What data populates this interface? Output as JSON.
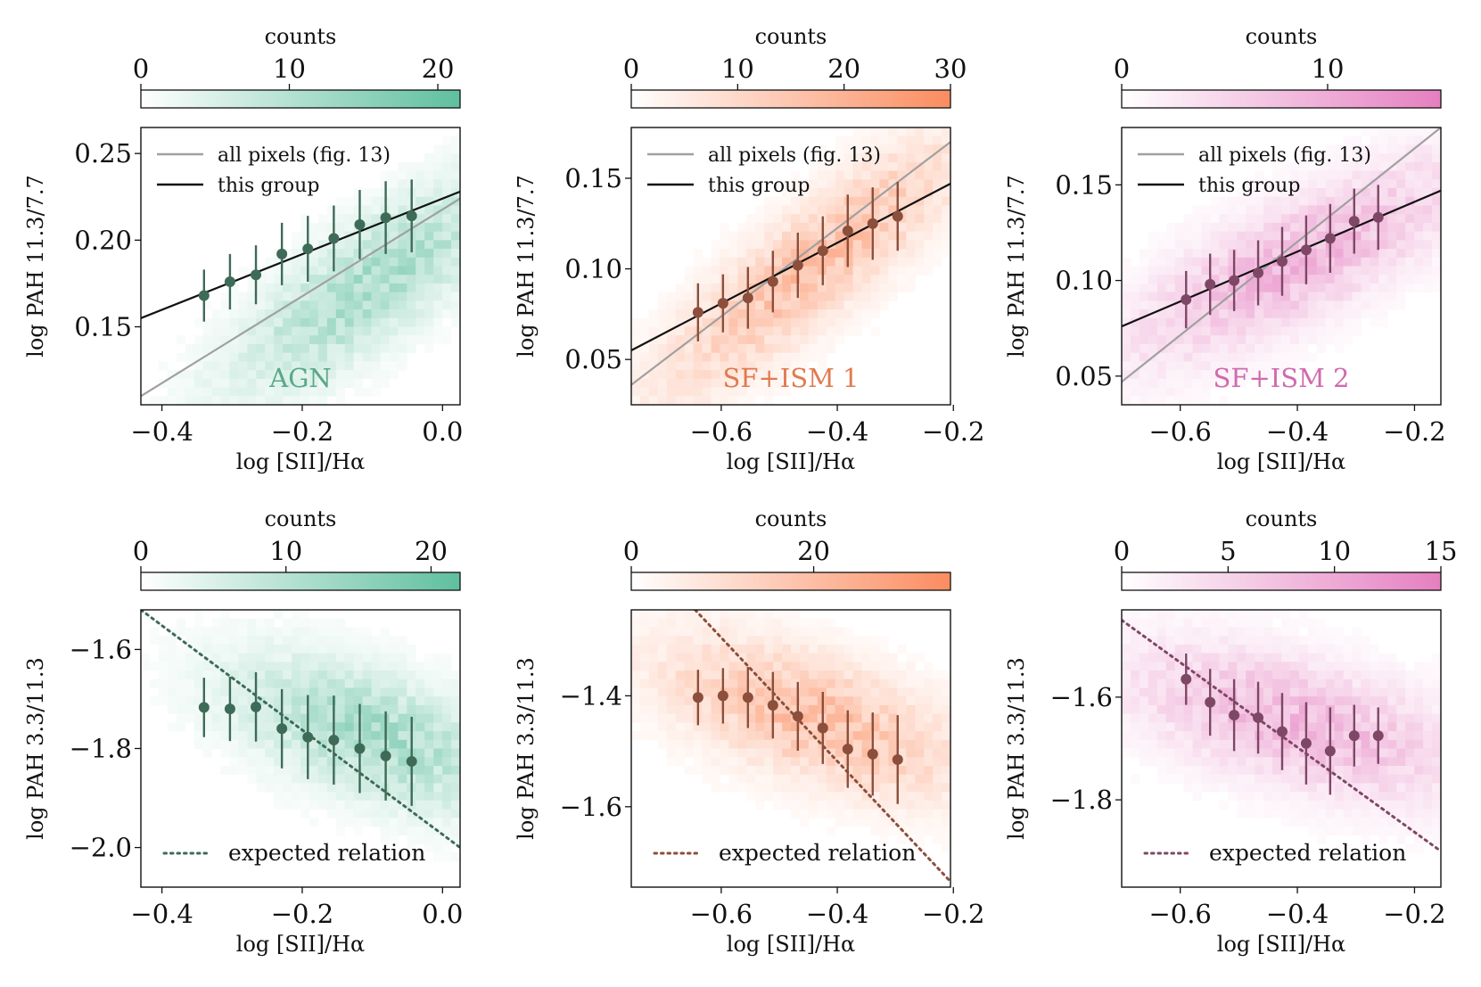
{
  "figure": {
    "colorbar_label": "counts",
    "xlabel": "log [SII]/Hα"
  },
  "legend_labels": {
    "all": "all pixels (fig. 13)",
    "group": "this group",
    "expected": "expected relation"
  },
  "chart_data": [
    {
      "id": "agn_top",
      "type": "scatter",
      "group": "AGN",
      "label_color": "#5aa888",
      "cmap": "#5fbf9f",
      "marker_color": "#3e6b58",
      "xlim": [
        -0.43,
        0.025
      ],
      "ylim": [
        0.105,
        0.265
      ],
      "xticks": [
        -0.4,
        -0.2,
        0.0
      ],
      "xtick_labels": [
        "−0.4",
        "−0.2",
        "0.0"
      ],
      "yticks": [
        0.15,
        0.2,
        0.25
      ],
      "ytick_labels": [
        "0.15",
        "0.20",
        "0.25"
      ],
      "ylabel": "log PAH 11.3/7.7",
      "cbar_max": 21.5,
      "cbar_ticks": [
        0,
        10,
        20
      ],
      "trend_x": [
        -0.22,
        0.02
      ],
      "trend_y": [
        0.145,
        0.205
      ],
      "x": [
        -0.34,
        -0.303,
        -0.266,
        -0.229,
        -0.192,
        -0.155,
        -0.118,
        -0.081,
        -0.044
      ],
      "y": [
        0.168,
        0.176,
        0.18,
        0.192,
        0.195,
        0.201,
        0.209,
        0.213,
        0.214
      ],
      "yerr": [
        0.015,
        0.016,
        0.017,
        0.018,
        0.019,
        0.019,
        0.02,
        0.021,
        0.021
      ],
      "all_pixels_line": {
        "x": [
          -0.43,
          0.025
        ],
        "y": [
          0.11,
          0.224
        ]
      },
      "group_line": {
        "x": [
          -0.43,
          0.025
        ],
        "y": [
          0.155,
          0.228
        ]
      },
      "legend": [
        "all",
        "group"
      ]
    },
    {
      "id": "sf1_top",
      "type": "scatter",
      "group": "SF+ISM 1",
      "label_color": "#e07a4f",
      "cmap": "#fb8c5f",
      "marker_color": "#8b4f3c",
      "xlim": [
        -0.755,
        -0.205
      ],
      "ylim": [
        0.025,
        0.178
      ],
      "xticks": [
        -0.6,
        -0.4,
        -0.2
      ],
      "xtick_labels": [
        "−0.6",
        "−0.4",
        "−0.2"
      ],
      "yticks": [
        0.05,
        0.1,
        0.15
      ],
      "ytick_labels": [
        "0.05",
        "0.10",
        "0.15"
      ],
      "ylabel": "log PAH 11.3/7.7",
      "cbar_max": 30,
      "cbar_ticks": [
        0,
        10,
        20,
        30
      ],
      "trend_x": [
        -0.6,
        -0.28
      ],
      "trend_y": [
        0.065,
        0.14
      ],
      "x": [
        -0.64,
        -0.597,
        -0.554,
        -0.511,
        -0.468,
        -0.425,
        -0.382,
        -0.339,
        -0.296
      ],
      "y": [
        0.076,
        0.081,
        0.084,
        0.093,
        0.102,
        0.11,
        0.121,
        0.125,
        0.129
      ],
      "yerr": [
        0.016,
        0.016,
        0.017,
        0.017,
        0.018,
        0.019,
        0.02,
        0.02,
        0.019
      ],
      "all_pixels_line": {
        "x": [
          -0.755,
          -0.205
        ],
        "y": [
          0.036,
          0.17
        ]
      },
      "group_line": {
        "x": [
          -0.755,
          -0.205
        ],
        "y": [
          0.055,
          0.147
        ]
      },
      "legend": [
        "all",
        "group"
      ]
    },
    {
      "id": "sf2_top",
      "type": "scatter",
      "group": "SF+ISM 2",
      "label_color": "#d06aae",
      "cmap": "#e57fc0",
      "marker_color": "#7e4766",
      "xlim": [
        -0.7,
        -0.155
      ],
      "ylim": [
        0.035,
        0.18
      ],
      "xticks": [
        -0.6,
        -0.4,
        -0.2
      ],
      "xtick_labels": [
        "−0.6",
        "−0.4",
        "−0.2"
      ],
      "yticks": [
        0.05,
        0.1,
        0.15
      ],
      "ytick_labels": [
        "0.05",
        "0.10",
        "0.15"
      ],
      "ylabel": "log PAH 11.3/7.7",
      "cbar_max": 15.5,
      "cbar_ticks": [
        0,
        10
      ],
      "trend_x": [
        -0.58,
        -0.22
      ],
      "trend_y": [
        0.085,
        0.135
      ],
      "x": [
        -0.59,
        -0.549,
        -0.508,
        -0.467,
        -0.426,
        -0.385,
        -0.344,
        -0.303,
        -0.262
      ],
      "y": [
        0.09,
        0.098,
        0.1,
        0.104,
        0.11,
        0.116,
        0.122,
        0.131,
        0.133
      ],
      "yerr": [
        0.015,
        0.016,
        0.016,
        0.017,
        0.018,
        0.018,
        0.018,
        0.017,
        0.017
      ],
      "all_pixels_line": {
        "x": [
          -0.7,
          -0.155
        ],
        "y": [
          0.047,
          0.18
        ]
      },
      "group_line": {
        "x": [
          -0.7,
          -0.155
        ],
        "y": [
          0.076,
          0.147
        ]
      },
      "legend": [
        "all",
        "group"
      ]
    },
    {
      "id": "agn_bottom",
      "type": "scatter",
      "group": "AGN",
      "label_color": "#5aa888",
      "cmap": "#5fbf9f",
      "marker_color": "#3e6b58",
      "xlim": [
        -0.43,
        0.025
      ],
      "ylim": [
        -2.08,
        -1.52
      ],
      "xticks": [
        -0.4,
        -0.2,
        0.0
      ],
      "xtick_labels": [
        "−0.4",
        "−0.2",
        "0.0"
      ],
      "yticks": [
        -2.0,
        -1.8,
        -1.6
      ],
      "ytick_labels": [
        "−2.0",
        "−1.8",
        "−1.6"
      ],
      "ylabel": "log PAH 3.3/11.3",
      "cbar_max": 22,
      "cbar_ticks": [
        0,
        10,
        20
      ],
      "trend_x": [
        -0.22,
        0.02
      ],
      "trend_y": [
        -1.72,
        -1.82
      ],
      "x": [
        -0.34,
        -0.303,
        -0.266,
        -0.229,
        -0.192,
        -0.155,
        -0.118,
        -0.081,
        -0.044
      ],
      "y": [
        -1.717,
        -1.72,
        -1.716,
        -1.76,
        -1.777,
        -1.783,
        -1.8,
        -1.815,
        -1.826
      ],
      "yerr": [
        0.06,
        0.065,
        0.07,
        0.08,
        0.085,
        0.09,
        0.09,
        0.09,
        0.09
      ],
      "expected_line": {
        "x": [
          -0.43,
          0.025
        ],
        "y": [
          -1.52,
          -2.0
        ]
      },
      "legend": [
        "expected"
      ]
    },
    {
      "id": "sf1_bottom",
      "type": "scatter",
      "group": "SF+ISM 1",
      "label_color": "#e07a4f",
      "cmap": "#fb8c5f",
      "marker_color": "#8b4f3c",
      "xlim": [
        -0.755,
        -0.205
      ],
      "ylim": [
        -1.745,
        -1.245
      ],
      "xticks": [
        -0.6,
        -0.4,
        -0.2
      ],
      "xtick_labels": [
        "−0.6",
        "−0.4",
        "−0.2"
      ],
      "yticks": [
        -1.6,
        -1.4
      ],
      "ytick_labels": [
        "−1.6",
        "−1.4"
      ],
      "ylabel": "log PAH 3.3/11.3",
      "cbar_max": 35,
      "cbar_ticks": [
        0,
        20
      ],
      "trend_x": [
        -0.6,
        -0.28
      ],
      "trend_y": [
        -1.39,
        -1.49
      ],
      "x": [
        -0.64,
        -0.597,
        -0.554,
        -0.511,
        -0.468,
        -0.425,
        -0.382,
        -0.339,
        -0.296
      ],
      "y": [
        -1.403,
        -1.4,
        -1.403,
        -1.417,
        -1.437,
        -1.458,
        -1.496,
        -1.505,
        -1.515
      ],
      "yerr": [
        0.05,
        0.05,
        0.055,
        0.06,
        0.062,
        0.065,
        0.07,
        0.075,
        0.08
      ],
      "expected_line": {
        "x": [
          -0.645,
          -0.205
        ],
        "y": [
          -1.245,
          -1.735
        ]
      },
      "legend": [
        "expected"
      ]
    },
    {
      "id": "sf2_bottom",
      "type": "scatter",
      "group": "SF+ISM 2",
      "label_color": "#d06aae",
      "cmap": "#e57fc0",
      "marker_color": "#7e4766",
      "xlim": [
        -0.7,
        -0.155
      ],
      "ylim": [
        -1.97,
        -1.43
      ],
      "xticks": [
        -0.6,
        -0.4,
        -0.2
      ],
      "xtick_labels": [
        "−0.6",
        "−0.4",
        "−0.2"
      ],
      "yticks": [
        -1.8,
        -1.6
      ],
      "ytick_labels": [
        "−1.8",
        "−1.6"
      ],
      "ylabel": "log PAH 3.3/11.3",
      "cbar_max": 15,
      "cbar_ticks": [
        0,
        5,
        10,
        15
      ],
      "trend_x": [
        -0.58,
        -0.22
      ],
      "trend_y": [
        -1.6,
        -1.7
      ],
      "x": [
        -0.59,
        -0.549,
        -0.508,
        -0.467,
        -0.426,
        -0.385,
        -0.344,
        -0.303,
        -0.262
      ],
      "y": [
        -1.565,
        -1.61,
        -1.635,
        -1.64,
        -1.667,
        -1.69,
        -1.705,
        -1.675,
        -1.675
      ],
      "yerr": [
        0.05,
        0.065,
        0.07,
        0.07,
        0.075,
        0.08,
        0.085,
        0.06,
        0.055
      ],
      "expected_line": {
        "x": [
          -0.7,
          -0.155
        ],
        "y": [
          -1.45,
          -1.9
        ]
      },
      "legend": [
        "expected"
      ]
    }
  ]
}
